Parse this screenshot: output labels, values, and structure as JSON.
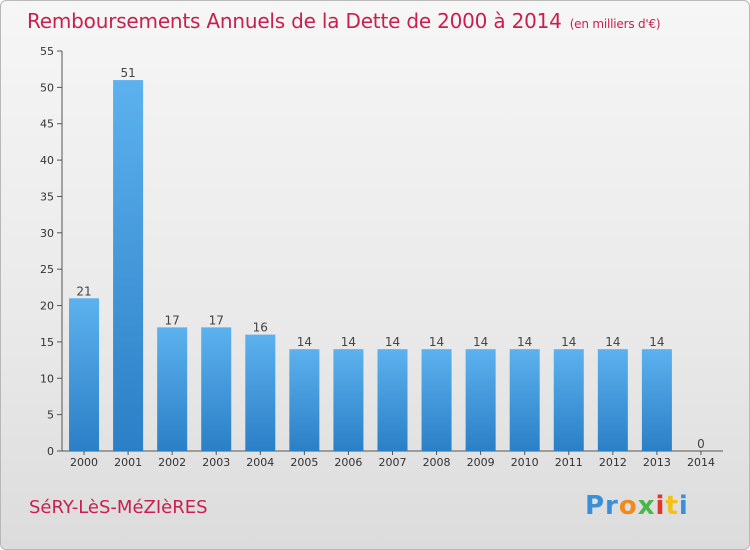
{
  "chart_data": {
    "type": "bar",
    "title": "Remboursements Annuels de la Dette de 2000 à 2014",
    "subtitle": "(en milliers d'€)",
    "categories": [
      "2000",
      "2001",
      "2002",
      "2003",
      "2004",
      "2005",
      "2006",
      "2007",
      "2008",
      "2009",
      "2010",
      "2011",
      "2012",
      "2013",
      "2014"
    ],
    "values": [
      21,
      51,
      17,
      17,
      16,
      14,
      14,
      14,
      14,
      14,
      14,
      14,
      14,
      14,
      0
    ],
    "ylim": [
      0,
      55
    ],
    "yticks": [
      0,
      5,
      10,
      15,
      20,
      25,
      30,
      35,
      40,
      45,
      50,
      55
    ],
    "grid": false,
    "bar_color": "#3a8fd8"
  },
  "footer": {
    "commune": "SéRY-LèS-MéZIèRES",
    "logo": [
      "Pr",
      "o",
      "x",
      "i",
      "t",
      "i"
    ]
  },
  "colors": {
    "accent": "#c8204e"
  }
}
